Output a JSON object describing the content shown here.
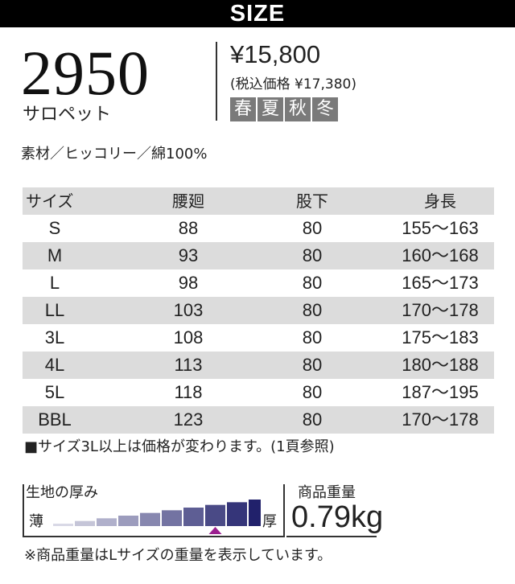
{
  "banner": {
    "title": "SIZE"
  },
  "product": {
    "model": "2950",
    "name": "サロペット",
    "price": "¥15,800",
    "tax_price": "(税込価格 ¥17,380)",
    "seasons": [
      "春",
      "夏",
      "秋",
      "冬"
    ],
    "material": "素材／ヒッコリー／綿100%"
  },
  "size_table": {
    "headers": [
      "サイズ",
      "腰廻",
      "股下",
      "身長"
    ],
    "rows": [
      [
        "S",
        "88",
        "80",
        "155〜163"
      ],
      [
        "M",
        "93",
        "80",
        "160〜168"
      ],
      [
        "L",
        "98",
        "80",
        "165〜173"
      ],
      [
        "LL",
        "103",
        "80",
        "170〜178"
      ],
      [
        "3L",
        "108",
        "80",
        "175〜183"
      ],
      [
        "4L",
        "113",
        "80",
        "180〜188"
      ],
      [
        "5L",
        "118",
        "80",
        "187〜195"
      ],
      [
        "BBL",
        "123",
        "80",
        "170〜178"
      ]
    ]
  },
  "note_price": "■サイズ3L以上は価格が変わります。(1頁参照)",
  "thickness": {
    "label": "生地の厚み",
    "thin_label": "薄",
    "thick_label": "厚",
    "levels": 10,
    "selected_level": 8,
    "colors": {
      "light": "#d9d9e6",
      "dark": "#21216b",
      "marker": "#9b1f8f"
    }
  },
  "weight": {
    "label": "商品重量",
    "value": "0.79kg"
  },
  "note_weight": "※商品重量はLサイズの重量を表示しています。"
}
